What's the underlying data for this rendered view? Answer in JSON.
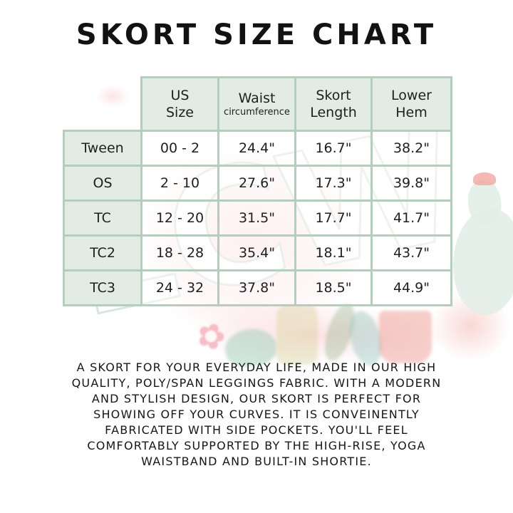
{
  "title": "SKORT SIZE CHART",
  "watermark": {
    "text": "LCW",
    "flower_glyph": "✿"
  },
  "table": {
    "headers": [
      {
        "line1": "US",
        "line2": "Size"
      },
      {
        "line1": "Waist",
        "line2": "circumference"
      },
      {
        "line1": "Skort",
        "line2": "Length"
      },
      {
        "line1": "Lower",
        "line2": "Hem"
      }
    ],
    "rows": [
      {
        "label": "Tween",
        "values": [
          "00 - 2",
          "24.4\"",
          "16.7\"",
          "38.2\""
        ]
      },
      {
        "label": "OS",
        "values": [
          "2 - 10",
          "27.6\"",
          "17.3\"",
          "39.8\""
        ]
      },
      {
        "label": "TC",
        "values": [
          "12 - 20",
          "31.5\"",
          "17.7\"",
          "41.7\""
        ]
      },
      {
        "label": "TC2",
        "values": [
          "18 - 28",
          "35.4\"",
          "18.1\"",
          "43.7\""
        ]
      },
      {
        "label": "TC3",
        "values": [
          "24 - 32",
          "37.8\"",
          "18.5\"",
          "44.9\""
        ]
      }
    ]
  },
  "description": {
    "lines": [
      "A SKORT FOR YOUR EVERYDAY LIFE, MADE IN OUR HIGH",
      "QUALITY, POLY/SPAN LEGGINGS FABRIC. WITH A MODERN",
      "AND STYLISH DESIGN, OUR SKORT IS PERFECT FOR",
      "SHOWING OFF YOUR CURVES. IT IS CONVEINENTLY",
      "FABRICATED WITH SIDE POCKETS. YOU'LL FEEL",
      "COMFORTABLY SUPPORTED BY THE HIGH-RISE, YOGA",
      "WAISTBAND AND BUILT-IN SHORTIE."
    ]
  },
  "colors": {
    "table_border": "#b5cdbd",
    "cell_fill": "#e2ebe4",
    "text": "#1d1d1d",
    "watermark_pink": "#f7c9cf",
    "watermark_green": "#e2ede6",
    "flower_pink": "#f2a29b"
  }
}
